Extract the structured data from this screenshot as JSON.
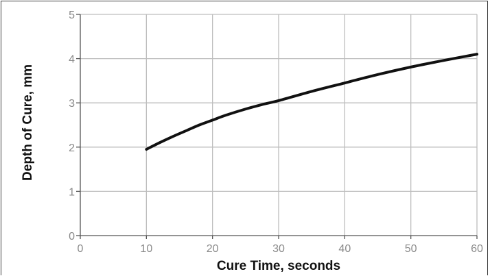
{
  "chart_data": {
    "type": "line",
    "title": "",
    "xlabel": "Cure Time, seconds",
    "ylabel": "Depth of Cure, mm",
    "xlim": [
      0,
      60
    ],
    "ylim": [
      0,
      5
    ],
    "x_ticks": [
      0,
      10,
      20,
      30,
      40,
      50,
      60
    ],
    "y_ticks": [
      0,
      1,
      2,
      3,
      4,
      5
    ],
    "grid": true,
    "legend": "none",
    "series": [
      {
        "x": [
          10,
          12,
          14,
          16,
          18,
          20,
          22,
          25,
          28,
          30,
          35,
          40,
          45,
          50,
          55,
          60
        ],
        "y": [
          1.95,
          2.1,
          2.24,
          2.37,
          2.5,
          2.61,
          2.72,
          2.86,
          2.98,
          3.05,
          3.26,
          3.45,
          3.64,
          3.81,
          3.96,
          4.1
        ],
        "color": "#111111"
      }
    ]
  },
  "colors": {
    "grid": "#bdbdbd",
    "axis": "#555555",
    "line": "#111111",
    "tick_text": "#8a8a8a"
  }
}
